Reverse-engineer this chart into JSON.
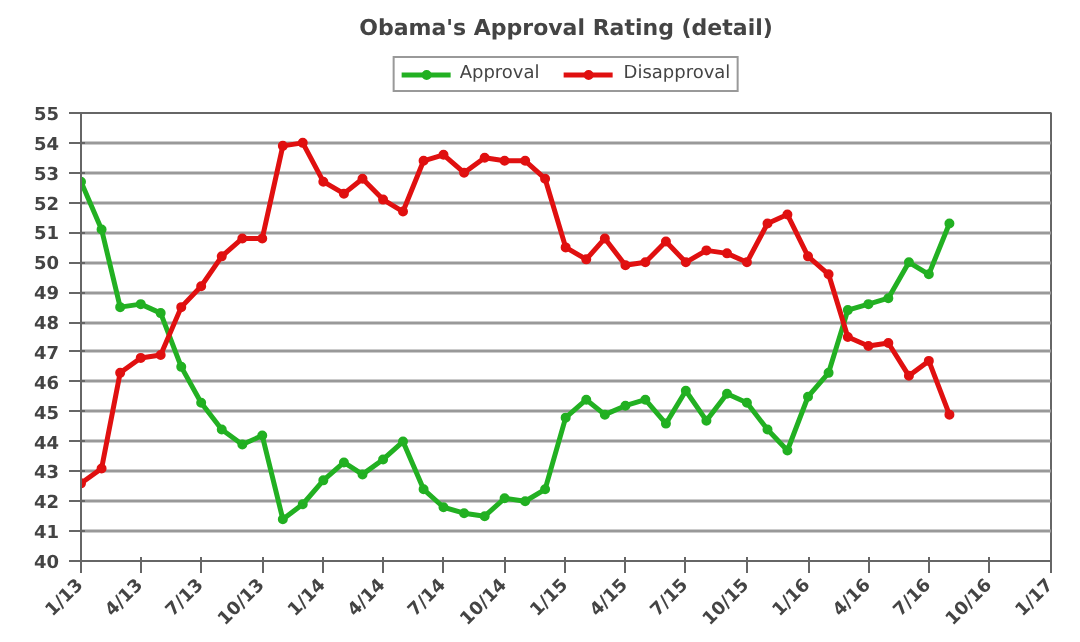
{
  "chart_data": {
    "type": "line",
    "title": "Obama's Approval Rating (detail)",
    "x": [
      "2013-01",
      "2013-02",
      "2013-03",
      "2013-04",
      "2013-05",
      "2013-06",
      "2013-07",
      "2013-08",
      "2013-09",
      "2013-10",
      "2013-11",
      "2013-12",
      "2014-01",
      "2014-02",
      "2014-03",
      "2014-04",
      "2014-05",
      "2014-06",
      "2014-07",
      "2014-08",
      "2014-09",
      "2014-10",
      "2014-11",
      "2014-12",
      "2015-01",
      "2015-02",
      "2015-03",
      "2015-04",
      "2015-05",
      "2015-06",
      "2015-07",
      "2015-08",
      "2015-09",
      "2015-10",
      "2015-11",
      "2015-12",
      "2016-01",
      "2016-02",
      "2016-03",
      "2016-04",
      "2016-05",
      "2016-06",
      "2016-07",
      "2016-08"
    ],
    "series": [
      {
        "name": "Approval",
        "color": "#22b022",
        "values": [
          52.7,
          51.1,
          48.5,
          48.6,
          48.3,
          46.5,
          45.3,
          44.4,
          43.9,
          44.2,
          41.4,
          41.9,
          42.7,
          43.3,
          42.9,
          43.4,
          44.0,
          42.4,
          41.8,
          41.6,
          41.5,
          42.1,
          42.0,
          42.4,
          44.8,
          45.4,
          44.9,
          45.2,
          45.4,
          44.6,
          45.7,
          44.7,
          45.6,
          45.3,
          44.4,
          43.7,
          45.5,
          46.3,
          48.4,
          48.6,
          48.8,
          50.0,
          49.6,
          51.3
        ]
      },
      {
        "name": "Disapproval",
        "color": "#e01010",
        "values": [
          42.6,
          43.1,
          46.3,
          46.8,
          46.9,
          48.5,
          49.2,
          50.2,
          50.8,
          50.8,
          53.9,
          54.0,
          52.7,
          52.3,
          52.8,
          52.1,
          51.7,
          53.4,
          53.6,
          53.0,
          53.5,
          53.4,
          53.4,
          52.8,
          50.5,
          50.1,
          50.8,
          49.9,
          50.0,
          50.7,
          50.0,
          50.4,
          50.3,
          50.0,
          51.3,
          51.6,
          50.2,
          49.6,
          47.5,
          47.2,
          47.3,
          46.2,
          46.7,
          44.9
        ]
      }
    ],
    "xlim": [
      "2013-01",
      "2017-01"
    ],
    "xticks": [
      {
        "value": "2013-01",
        "label": "1/13"
      },
      {
        "value": "2013-04",
        "label": "4/13"
      },
      {
        "value": "2013-07",
        "label": "7/13"
      },
      {
        "value": "2013-10",
        "label": "10/13"
      },
      {
        "value": "2014-01",
        "label": "1/14"
      },
      {
        "value": "2014-04",
        "label": "4/14"
      },
      {
        "value": "2014-07",
        "label": "7/14"
      },
      {
        "value": "2014-10",
        "label": "10/14"
      },
      {
        "value": "2015-01",
        "label": "1/15"
      },
      {
        "value": "2015-04",
        "label": "4/15"
      },
      {
        "value": "2015-07",
        "label": "7/15"
      },
      {
        "value": "2015-10",
        "label": "10/15"
      },
      {
        "value": "2016-01",
        "label": "1/16"
      },
      {
        "value": "2016-04",
        "label": "4/16"
      },
      {
        "value": "2016-07",
        "label": "7/16"
      },
      {
        "value": "2016-10",
        "label": "10/16"
      },
      {
        "value": "2017-01",
        "label": "1/17"
      }
    ],
    "ylim": [
      40,
      55
    ],
    "yticks": [
      40,
      41,
      42,
      43,
      44,
      45,
      46,
      47,
      48,
      49,
      50,
      51,
      52,
      53,
      54,
      55
    ],
    "grid": "y",
    "legend": "top",
    "marker": "circle",
    "line_style": "solid"
  }
}
